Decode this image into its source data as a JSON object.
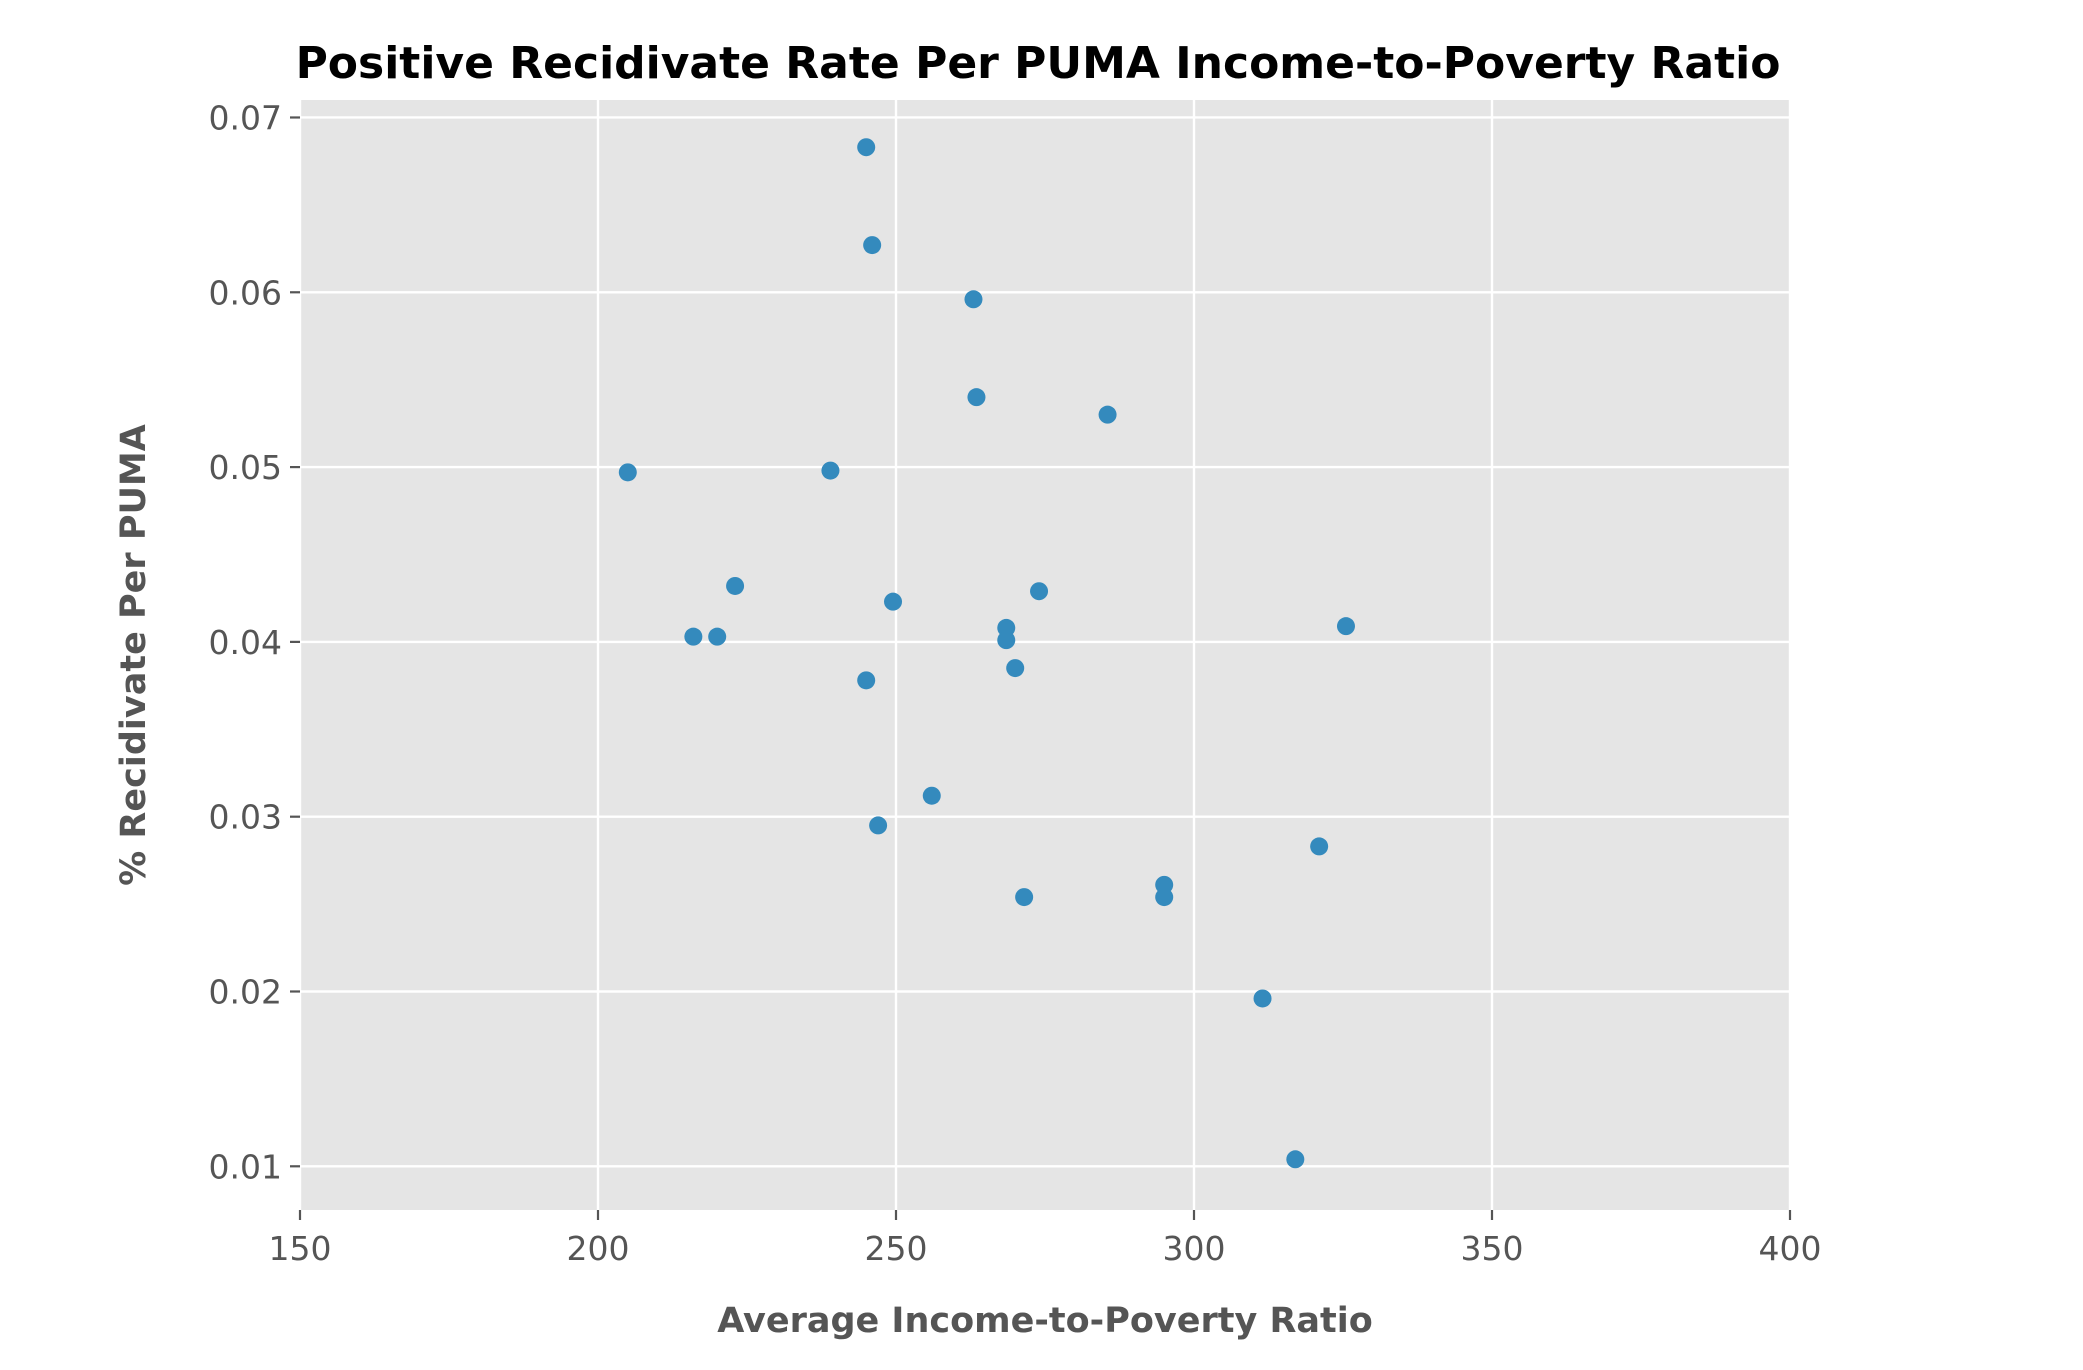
{
  "chart_data": {
    "type": "scatter",
    "title": "Positive Recidivate Rate Per PUMA Income-to-Poverty Ratio",
    "xlabel": "Average Income-to-Poverty Ratio",
    "ylabel": "% Recidivate Per PUMA",
    "xlim": [
      150,
      400
    ],
    "ylim": [
      0.0075,
      0.071
    ],
    "xticks": [
      150,
      200,
      250,
      300,
      350,
      400
    ],
    "xtick_labels": [
      "150",
      "200",
      "250",
      "300",
      "350",
      "400"
    ],
    "yticks": [
      0.01,
      0.02,
      0.03,
      0.04,
      0.05,
      0.06,
      0.07
    ],
    "ytick_labels": [
      "0.01",
      "0.02",
      "0.03",
      "0.04",
      "0.05",
      "0.06",
      "0.07"
    ],
    "grid": true,
    "marker_color": "#348ABD",
    "background_color": "#E5E5E5",
    "points": [
      {
        "x": 205,
        "y": 0.0497
      },
      {
        "x": 216,
        "y": 0.0403
      },
      {
        "x": 220,
        "y": 0.0403
      },
      {
        "x": 223,
        "y": 0.0432
      },
      {
        "x": 239,
        "y": 0.0498
      },
      {
        "x": 245,
        "y": 0.0683
      },
      {
        "x": 245,
        "y": 0.0378
      },
      {
        "x": 246,
        "y": 0.0627
      },
      {
        "x": 247,
        "y": 0.0295
      },
      {
        "x": 249.5,
        "y": 0.0423
      },
      {
        "x": 256,
        "y": 0.0312
      },
      {
        "x": 263,
        "y": 0.0596
      },
      {
        "x": 263.5,
        "y": 0.054
      },
      {
        "x": 268.5,
        "y": 0.0408
      },
      {
        "x": 268.5,
        "y": 0.0401
      },
      {
        "x": 270,
        "y": 0.0385
      },
      {
        "x": 271.5,
        "y": 0.0254
      },
      {
        "x": 274,
        "y": 0.0429
      },
      {
        "x": 285.5,
        "y": 0.053
      },
      {
        "x": 295,
        "y": 0.0261
      },
      {
        "x": 295,
        "y": 0.0254
      },
      {
        "x": 311.5,
        "y": 0.0196
      },
      {
        "x": 317,
        "y": 0.0104
      },
      {
        "x": 321,
        "y": 0.0283
      },
      {
        "x": 325.5,
        "y": 0.0409
      }
    ]
  }
}
